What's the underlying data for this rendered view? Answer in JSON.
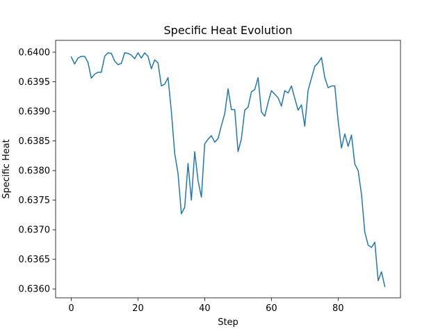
{
  "chart_data": {
    "type": "line",
    "title": "Specific Heat Evolution",
    "xlabel": "Step",
    "ylabel": "Specific Heat",
    "xlim": [
      -4.7,
      98.7
    ],
    "ylim": [
      0.63585,
      0.6402
    ],
    "xticks": [
      0,
      20,
      40,
      60,
      80
    ],
    "yticks": [
      0.636,
      0.6365,
      0.637,
      0.6375,
      0.638,
      0.6385,
      0.639,
      0.6395,
      0.64
    ],
    "ytick_decimals": 4,
    "grid": false,
    "legend": "none",
    "series": [
      {
        "color": "#1f77b4",
        "x": [
          0,
          1,
          2,
          3,
          4,
          5,
          6,
          7,
          8,
          9,
          10,
          11,
          12,
          13,
          14,
          15,
          16,
          17,
          18,
          19,
          20,
          21,
          22,
          23,
          24,
          25,
          26,
          27,
          28,
          29,
          30,
          31,
          32,
          33,
          34,
          35,
          36,
          37,
          38,
          39,
          40,
          41,
          42,
          43,
          44,
          45,
          46,
          47,
          48,
          49,
          50,
          51,
          52,
          53,
          54,
          55,
          56,
          57,
          58,
          59,
          60,
          61,
          62,
          63,
          64,
          65,
          66,
          67,
          68,
          69,
          70,
          71,
          72,
          73,
          74,
          75,
          76,
          77,
          78,
          79,
          80,
          81,
          82,
          83,
          84,
          85,
          86,
          87,
          88,
          89,
          90,
          91,
          92,
          93,
          94
        ],
        "y": [
          0.63992,
          0.6398,
          0.6399,
          0.63993,
          0.63993,
          0.63983,
          0.63956,
          0.63963,
          0.63966,
          0.63966,
          0.63993,
          0.63999,
          0.63998,
          0.63985,
          0.63979,
          0.63981,
          0.63999,
          0.63998,
          0.63995,
          0.63989,
          0.63999,
          0.6399,
          0.63999,
          0.63993,
          0.63972,
          0.63987,
          0.63982,
          0.63943,
          0.63946,
          0.63957,
          0.639,
          0.63829,
          0.63795,
          0.63727,
          0.63738,
          0.63812,
          0.6375,
          0.63832,
          0.63783,
          0.63755,
          0.63845,
          0.63853,
          0.63859,
          0.63848,
          0.63854,
          0.63876,
          0.63896,
          0.63938,
          0.63903,
          0.63903,
          0.63832,
          0.63854,
          0.63902,
          0.63907,
          0.63933,
          0.63937,
          0.63957,
          0.63899,
          0.63892,
          0.63915,
          0.63935,
          0.63929,
          0.63923,
          0.63909,
          0.63935,
          0.63931,
          0.63943,
          0.63922,
          0.63902,
          0.63911,
          0.63875,
          0.63936,
          0.63956,
          0.63976,
          0.63982,
          0.63991,
          0.63957,
          0.6394,
          0.63943,
          0.63943,
          0.63884,
          0.63838,
          0.63862,
          0.63841,
          0.6386,
          0.63811,
          0.638,
          0.6376,
          0.63696,
          0.63674,
          0.6367,
          0.63679,
          0.63614,
          0.63629,
          0.63604
        ]
      }
    ]
  }
}
